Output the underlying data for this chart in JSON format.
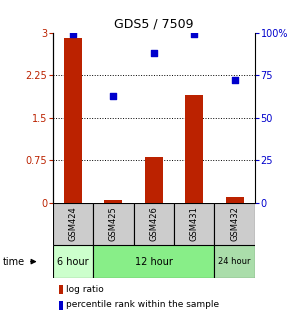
{
  "title": "GDS5 / 7509",
  "samples": [
    "GSM424",
    "GSM425",
    "GSM426",
    "GSM431",
    "GSM432"
  ],
  "log_ratio": [
    2.9,
    0.05,
    0.8,
    1.9,
    0.1
  ],
  "percentile_rank": [
    99,
    63,
    88,
    99,
    72
  ],
  "bar_color": "#bb2200",
  "dot_color": "#0000cc",
  "ylim_left": [
    0,
    3
  ],
  "ylim_right": [
    0,
    100
  ],
  "yticks_left": [
    0,
    0.75,
    1.5,
    2.25,
    3
  ],
  "ytick_labels_left": [
    "0",
    "0.75",
    "1.5",
    "2.25",
    "3"
  ],
  "yticks_right": [
    0,
    25,
    50,
    75,
    100
  ],
  "ytick_labels_right": [
    "0",
    "25",
    "50",
    "75",
    "100%"
  ],
  "gridlines": [
    0.75,
    1.5,
    2.25
  ],
  "time_groups": [
    {
      "label": "6 hour",
      "samples": [
        "GSM424"
      ],
      "color": "#ccffcc"
    },
    {
      "label": "12 hour",
      "samples": [
        "GSM425",
        "GSM426",
        "GSM431"
      ],
      "color": "#88ee88"
    },
    {
      "label": "24 hour",
      "samples": [
        "GSM432"
      ],
      "color": "#aaddaa"
    }
  ],
  "time_label": "time",
  "legend_log_ratio": "log ratio",
  "legend_percentile": "percentile rank within the sample",
  "background_color": "#ffffff",
  "sample_box_color": "#cccccc"
}
